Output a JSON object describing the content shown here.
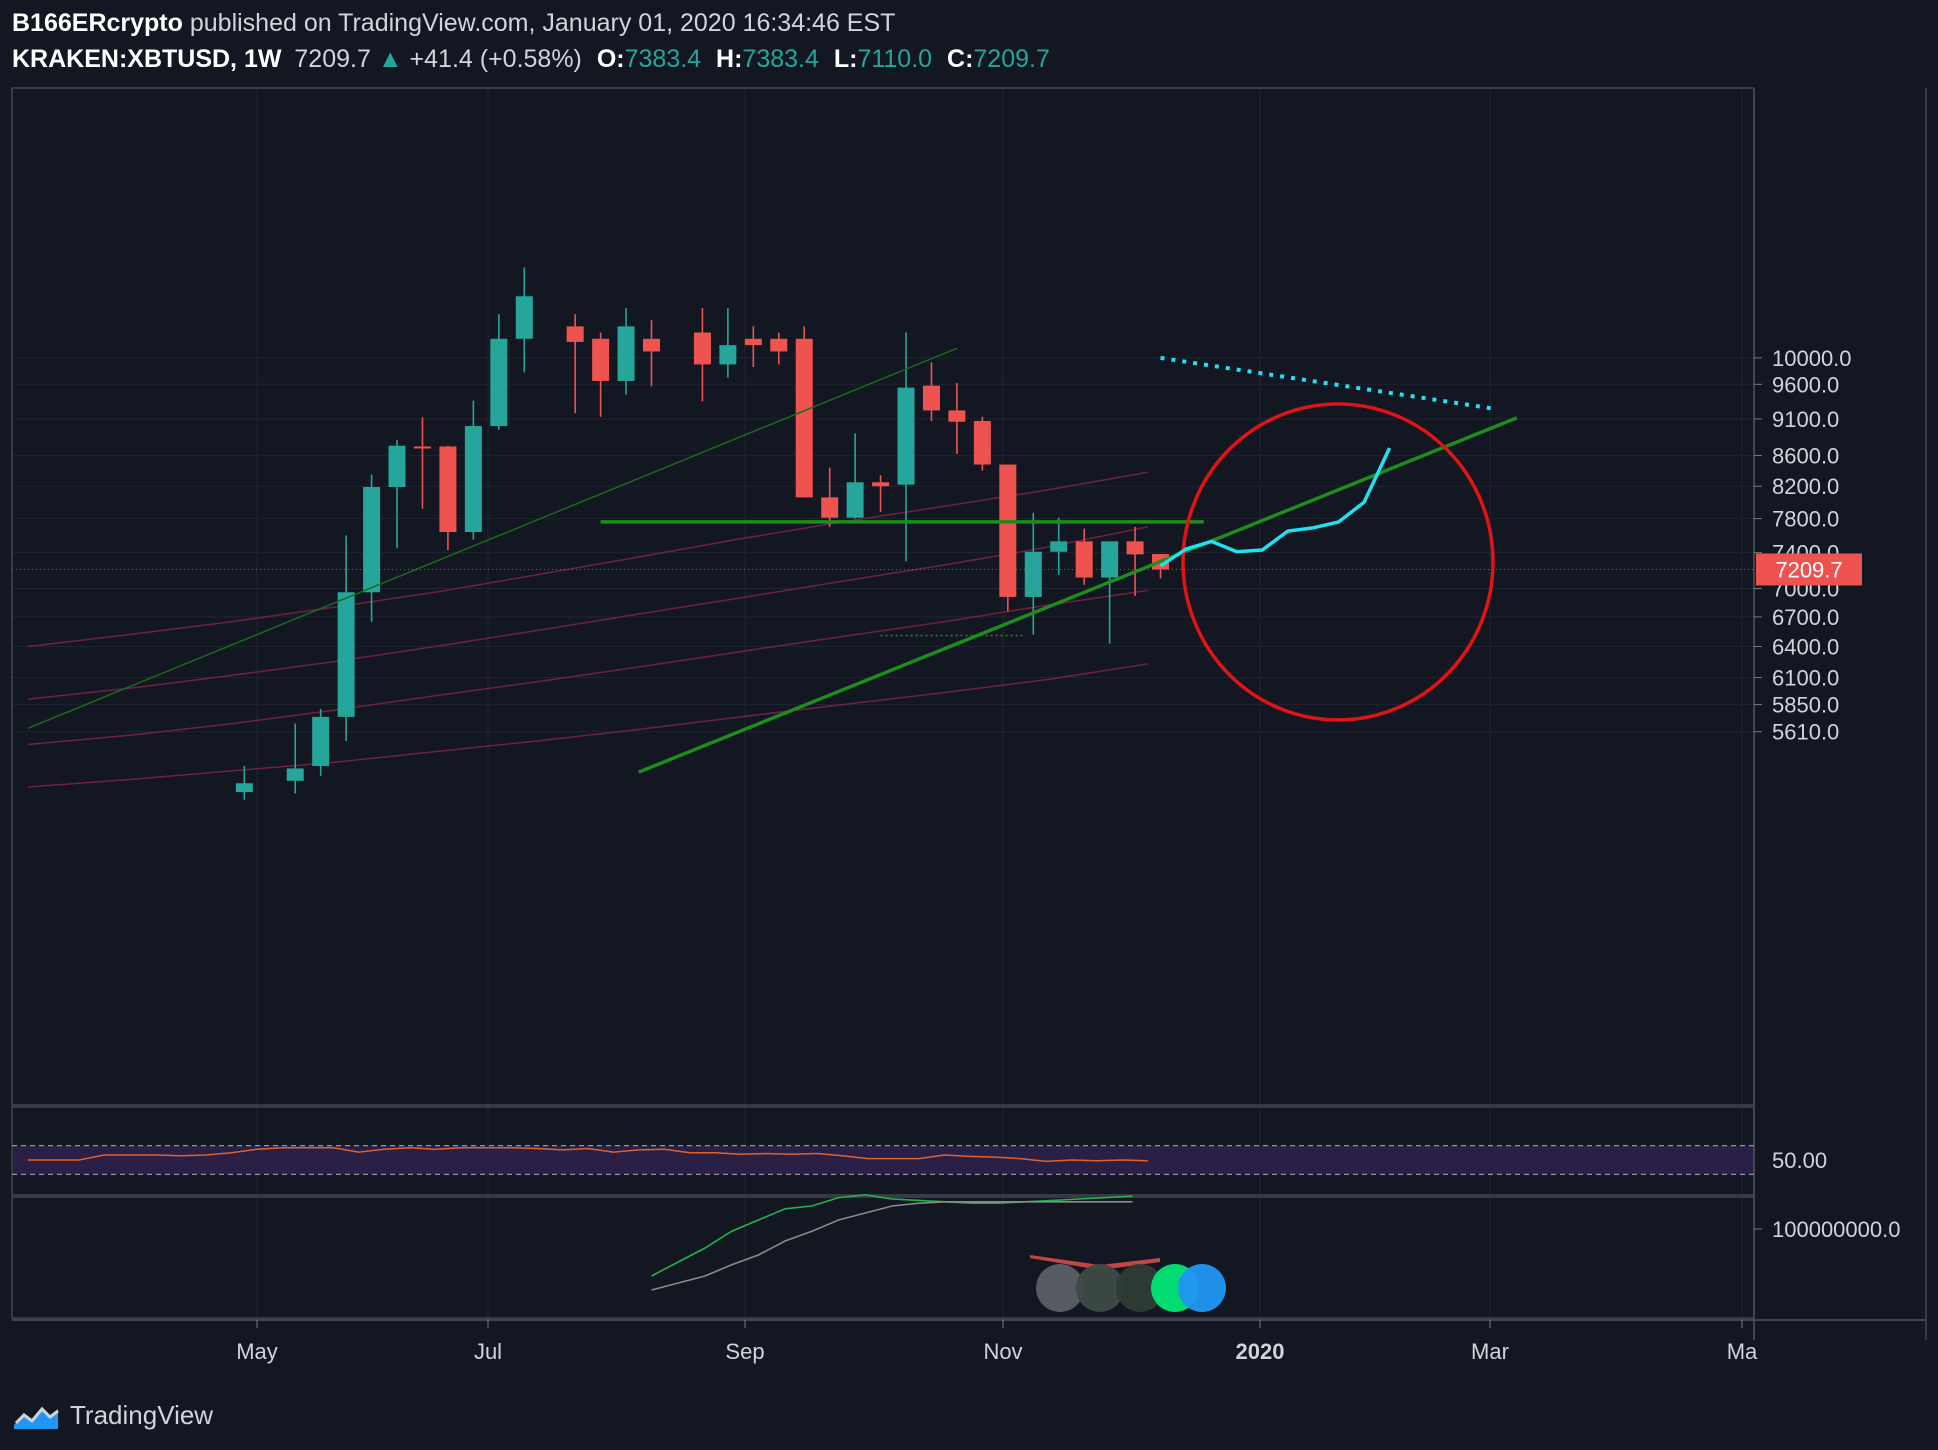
{
  "header": {
    "author": "B166ERcrypto",
    "published_text": "published on TradingView.com, January 01, 2020 16:34:46 EST",
    "symbol": "KRAKEN:XBTUSD, 1W",
    "last_price": "7209.7",
    "change": "+41.4 (+0.58%)",
    "open_label": "O:",
    "open": "7383.4",
    "high_label": "H:",
    "high": "7383.4",
    "low_label": "L:",
    "low": "7110.0",
    "close_label": "C:",
    "close": "7209.7"
  },
  "footer": {
    "brand": "TradingView"
  },
  "colors": {
    "background": "#131722",
    "up": "#26a69a",
    "down": "#ef5350",
    "grid": "#1f2430",
    "trendline": "#1e8c1e",
    "projection": "#22e0f0",
    "circle": "#e01414",
    "price_tag": "#ef5350"
  },
  "chart_data": [
    {
      "type": "candlestick",
      "symbol": "KRAKEN:XBTUSD",
      "interval": "1W",
      "scale": "log",
      "price_axis": [
        "10000.0",
        "9600.0",
        "9100.0",
        "8600.0",
        "8200.0",
        "7800.0",
        "7400.0",
        "7000.0",
        "6700.0",
        "6400.0",
        "6100.0",
        "5850.0",
        "5610.0"
      ],
      "current_price_label": "7209.7",
      "time_axis": [
        "May",
        "Jul",
        "Sep",
        "Nov",
        "2020",
        "Mar",
        "Ma"
      ],
      "candles": [
        {
          "x": 8.5,
          "o": 5110,
          "h": 5320,
          "l": 5050,
          "c": 5180
        },
        {
          "x": 10.5,
          "o": 5200,
          "h": 5680,
          "l": 5100,
          "c": 5300
        },
        {
          "x": 11.5,
          "o": 5320,
          "h": 5810,
          "l": 5240,
          "c": 5740
        },
        {
          "x": 12.5,
          "o": 5740,
          "h": 7600,
          "l": 5530,
          "c": 6960
        },
        {
          "x": 13.5,
          "o": 6960,
          "h": 8350,
          "l": 6650,
          "c": 8190
        },
        {
          "x": 14.5,
          "o": 8190,
          "h": 8810,
          "l": 7450,
          "c": 8730
        },
        {
          "x": 15.5,
          "o": 8720,
          "h": 9120,
          "l": 7920,
          "c": 8700
        },
        {
          "x": 16.5,
          "o": 8720,
          "h": 8730,
          "l": 7430,
          "c": 7640
        },
        {
          "x": 17.5,
          "o": 7640,
          "h": 9360,
          "l": 7550,
          "c": 9000
        },
        {
          "x": 18.5,
          "o": 9000,
          "h": 10700,
          "l": 8950,
          "c": 10300
        },
        {
          "x": 19.5,
          "o": 10300,
          "h": 11500,
          "l": 9780,
          "c": 11000
        },
        {
          "x": 21.5,
          "o": 10500,
          "h": 10700,
          "l": 9180,
          "c": 10250
        },
        {
          "x": 22.5,
          "o": 10300,
          "h": 10400,
          "l": 9130,
          "c": 9650
        },
        {
          "x": 23.5,
          "o": 9650,
          "h": 10800,
          "l": 9450,
          "c": 10500
        },
        {
          "x": 24.5,
          "o": 10300,
          "h": 10600,
          "l": 9570,
          "c": 10100
        },
        {
          "x": 26.5,
          "o": 10400,
          "h": 10800,
          "l": 9350,
          "c": 9900
        },
        {
          "x": 27.5,
          "o": 9900,
          "h": 10800,
          "l": 9700,
          "c": 10200
        },
        {
          "x": 28.5,
          "o": 10300,
          "h": 10500,
          "l": 9860,
          "c": 10200
        },
        {
          "x": 29.5,
          "o": 10300,
          "h": 10400,
          "l": 9900,
          "c": 10100
        },
        {
          "x": 30.5,
          "o": 10300,
          "h": 10500,
          "l": 8060,
          "c": 8060
        },
        {
          "x": 31.5,
          "o": 8060,
          "h": 8440,
          "l": 7700,
          "c": 7810
        },
        {
          "x": 32.5,
          "o": 7810,
          "h": 8900,
          "l": 7800,
          "c": 8250
        },
        {
          "x": 33.5,
          "o": 8250,
          "h": 8340,
          "l": 7880,
          "c": 8200
        },
        {
          "x": 34.5,
          "o": 8220,
          "h": 10400,
          "l": 7300,
          "c": 9550
        },
        {
          "x": 35.5,
          "o": 9580,
          "h": 9930,
          "l": 9070,
          "c": 9220
        },
        {
          "x": 36.5,
          "o": 9220,
          "h": 9620,
          "l": 8620,
          "c": 9060
        },
        {
          "x": 37.5,
          "o": 9070,
          "h": 9130,
          "l": 8400,
          "c": 8480
        },
        {
          "x": 38.5,
          "o": 8480,
          "h": 8480,
          "l": 6760,
          "c": 6910
        },
        {
          "x": 39.5,
          "o": 6910,
          "h": 7870,
          "l": 6520,
          "c": 7410
        },
        {
          "x": 40.5,
          "o": 7410,
          "h": 7810,
          "l": 7150,
          "c": 7530
        },
        {
          "x": 41.5,
          "o": 7530,
          "h": 7680,
          "l": 7040,
          "c": 7120
        },
        {
          "x": 42.5,
          "o": 7120,
          "h": 7520,
          "l": 6430,
          "c": 7530
        },
        {
          "x": 43.5,
          "o": 7530,
          "h": 7700,
          "l": 6920,
          "c": 7380
        },
        {
          "x": 44.5,
          "o": 7383.4,
          "h": 7383.4,
          "l": 7110.0,
          "c": 7209.7
        }
      ],
      "annotations": {
        "horizontal_level": 7760,
        "support_trendline": [
          [
            24.0,
            5270
          ],
          [
            58.5,
            9115
          ]
        ],
        "upper_trendline": [
          [
            0,
            5640
          ],
          [
            36.5,
            10150
          ]
        ],
        "low_marker": 6510,
        "projection_path": [
          [
            44.5,
            7250
          ],
          [
            45.5,
            7440
          ],
          [
            46.5,
            7530
          ],
          [
            47.5,
            7410
          ],
          [
            48.5,
            7430
          ],
          [
            49.5,
            7650
          ],
          [
            50.5,
            7690
          ],
          [
            51.5,
            7760
          ],
          [
            52.5,
            8000
          ],
          [
            53.5,
            8700
          ]
        ],
        "dotted_resistance": [
          [
            44.5,
            10000
          ],
          [
            57.5,
            9250
          ]
        ]
      }
    },
    {
      "type": "line",
      "panel": "RSI",
      "axis_labels": [
        "50.00"
      ],
      "bands": [
        70,
        30
      ],
      "x": [
        0,
        1,
        2,
        3,
        4,
        5,
        6,
        7,
        8,
        9,
        10,
        11,
        12,
        13,
        14,
        15,
        16,
        17,
        18,
        19,
        20,
        21,
        22,
        23,
        24,
        25,
        26,
        27,
        28,
        29,
        30,
        31,
        32,
        33,
        34,
        35,
        36,
        37,
        38,
        39,
        40,
        41,
        42,
        43,
        44
      ],
      "values": [
        50,
        50,
        50,
        57,
        57,
        57,
        56,
        57,
        60,
        65,
        67,
        67,
        67,
        61,
        65,
        67,
        65,
        67,
        67,
        67,
        66,
        64,
        66,
        61,
        64,
        65,
        60,
        60,
        58,
        59,
        58,
        59,
        56,
        52,
        52,
        52,
        57,
        55,
        54,
        52,
        48,
        50,
        49,
        50,
        49
      ]
    },
    {
      "type": "line",
      "panel": "Volume",
      "axis_labels": [
        "100000000.0"
      ],
      "series": [
        {
          "values": [
            0.3,
            0.4,
            0.5,
            0.62,
            0.7,
            0.78,
            0.8,
            0.86,
            0.88,
            0.85,
            0.84,
            0.83,
            0.82,
            0.82,
            0.83,
            0.84,
            0.85,
            0.86,
            0.87
          ]
        },
        {
          "values": [
            0.2,
            0.25,
            0.3,
            0.38,
            0.45,
            0.55,
            0.62,
            0.7,
            0.75,
            0.8,
            0.82,
            0.83,
            0.83,
            0.83,
            0.83,
            0.83,
            0.83,
            0.83,
            0.83
          ]
        }
      ]
    }
  ]
}
